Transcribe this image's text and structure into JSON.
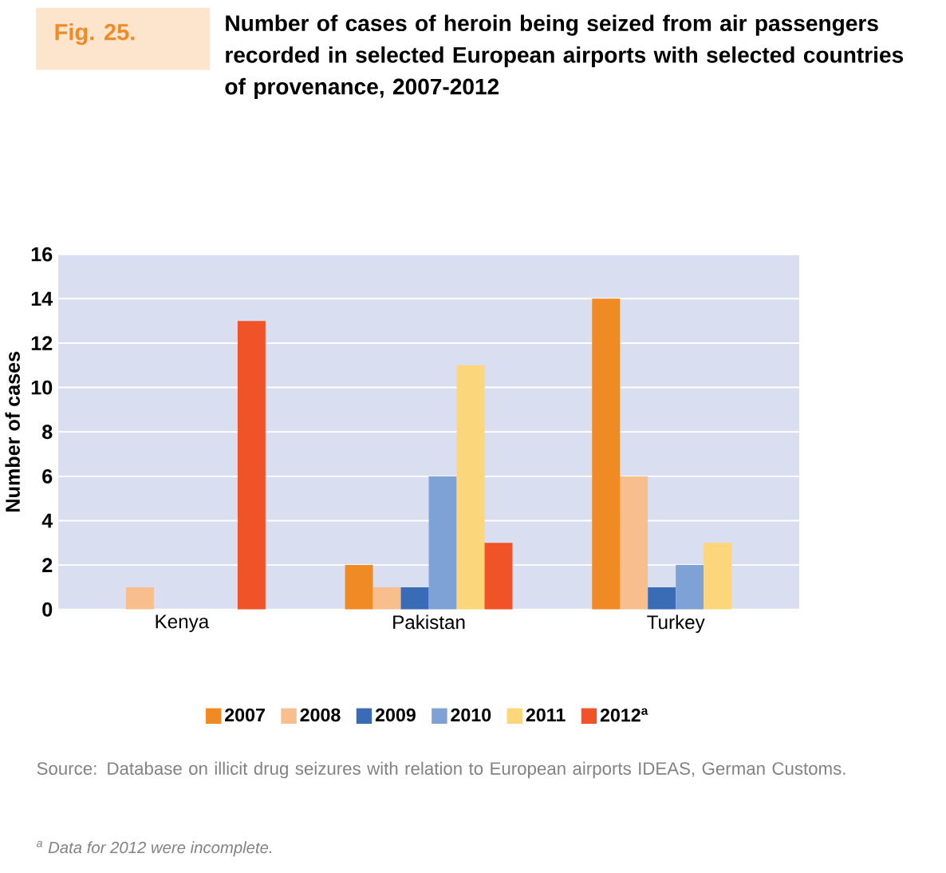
{
  "chart_data": {
    "type": "bar",
    "title": "Number of cases of heroin being seized from air passengers recorded in selected European airports with selected countries of provenance, 2007-2012",
    "ylabel": "Number of cases",
    "categories": [
      "Kenya",
      "Pakistan",
      "Turkey"
    ],
    "series": [
      {
        "name": "2007",
        "color": "#f08a24",
        "values": [
          0,
          2,
          14
        ]
      },
      {
        "name": "2008",
        "color": "#f9be8e",
        "values": [
          1,
          1,
          6
        ]
      },
      {
        "name": "2009",
        "color": "#3a6bb5",
        "values": [
          0,
          1,
          1
        ]
      },
      {
        "name": "2010",
        "color": "#7ea1d6",
        "values": [
          0,
          6,
          2
        ]
      },
      {
        "name": "2011",
        "color": "#fcd67a",
        "values": [
          0,
          11,
          3
        ]
      },
      {
        "name": "2012$^{a}$",
        "color": "#ef5327",
        "values": [
          13,
          3,
          0
        ]
      }
    ],
    "ylim": [
      0,
      16
    ],
    "yticks": [
      0,
      2,
      4,
      6,
      8,
      10,
      12,
      14,
      16
    ],
    "grid": "y",
    "legend": "bottom",
    "annotations": [
      "Fig. 25.",
      "Source: Database on illicit drug seizures with relation to European airports IDEAS, German Customs.",
      "$^{a}$ Data for 2012 were incomplete."
    ]
  }
}
